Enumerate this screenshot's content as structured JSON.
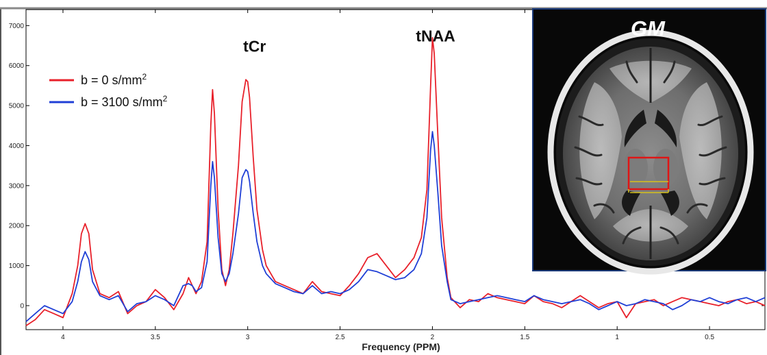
{
  "chart_data": {
    "type": "line",
    "title": "",
    "xlabel": "Frequency (PPM)",
    "ylabel": "",
    "xlim": [
      4.2,
      0.2
    ],
    "x_reversed": true,
    "ylim": [
      -600,
      7400
    ],
    "x_ticks": [
      4,
      3.5,
      3,
      2.5,
      2,
      1.5,
      1,
      0.5
    ],
    "x_tick_labels": [
      "4",
      "3.5",
      "3",
      "2.5",
      "2",
      "1.5",
      "1",
      "0.5"
    ],
    "y_ticks": [
      0,
      1000,
      2000,
      3000,
      4000,
      5000,
      6000,
      7000
    ],
    "y_tick_labels": [
      "0",
      "1000",
      "2000",
      "3000",
      "4000",
      "5000",
      "6000",
      "7000"
    ],
    "grid": false,
    "legend": {
      "placement": "upper-left",
      "entries": [
        {
          "prefix": "b = 0 s/mm",
          "sup": "2",
          "color": "#e8202a"
        },
        {
          "prefix": "b = 3100 s/mm",
          "sup": "2",
          "color": "#1f3fd6"
        }
      ]
    },
    "annotations": [
      {
        "text": "tCr",
        "x": 3.0,
        "y": 6350
      },
      {
        "text": "tNAA",
        "x": 2.02,
        "y": 6600
      }
    ],
    "series": [
      {
        "name": "b = 0 s/mm2",
        "color": "#e8202a",
        "x": [
          4.2,
          4.15,
          4.1,
          4.05,
          4.0,
          3.95,
          3.92,
          3.9,
          3.88,
          3.86,
          3.84,
          3.8,
          3.75,
          3.7,
          3.65,
          3.6,
          3.55,
          3.5,
          3.45,
          3.4,
          3.35,
          3.32,
          3.3,
          3.28,
          3.25,
          3.22,
          3.2,
          3.19,
          3.18,
          3.16,
          3.14,
          3.12,
          3.1,
          3.08,
          3.05,
          3.03,
          3.01,
          3.0,
          2.99,
          2.97,
          2.95,
          2.92,
          2.9,
          2.85,
          2.8,
          2.75,
          2.7,
          2.65,
          2.6,
          2.55,
          2.5,
          2.45,
          2.4,
          2.35,
          2.3,
          2.25,
          2.2,
          2.15,
          2.1,
          2.06,
          2.03,
          2.01,
          2.0,
          1.99,
          1.97,
          1.95,
          1.92,
          1.9,
          1.85,
          1.8,
          1.75,
          1.7,
          1.65,
          1.6,
          1.55,
          1.5,
          1.45,
          1.4,
          1.35,
          1.3,
          1.25,
          1.2,
          1.15,
          1.1,
          1.05,
          1.0,
          0.95,
          0.9,
          0.85,
          0.8,
          0.75,
          0.7,
          0.65,
          0.6,
          0.55,
          0.5,
          0.45,
          0.4,
          0.35,
          0.3,
          0.25,
          0.2
        ],
        "y": [
          -500,
          -350,
          -100,
          -200,
          -300,
          300,
          1000,
          1800,
          2050,
          1800,
          900,
          300,
          200,
          350,
          -200,
          0,
          100,
          400,
          200,
          -100,
          300,
          700,
          500,
          300,
          600,
          1600,
          4500,
          5400,
          4800,
          2400,
          900,
          500,
          900,
          1800,
          3500,
          5100,
          5650,
          5600,
          5200,
          3700,
          2400,
          1400,
          1000,
          600,
          500,
          400,
          300,
          600,
          350,
          300,
          250,
          500,
          800,
          1200,
          1300,
          1000,
          700,
          900,
          1200,
          1700,
          2900,
          5500,
          6700,
          6300,
          4200,
          2200,
          700,
          200,
          -50,
          150,
          100,
          300,
          200,
          150,
          100,
          50,
          250,
          100,
          50,
          -50,
          100,
          250,
          100,
          -50,
          50,
          100,
          -300,
          50,
          100,
          150,
          0,
          100,
          200,
          150,
          100,
          50,
          0,
          100,
          150,
          50,
          100,
          0
        ]
      },
      {
        "name": "b = 3100 s/mm2",
        "color": "#1f3fd6",
        "x": [
          4.2,
          4.15,
          4.1,
          4.05,
          4.0,
          3.95,
          3.92,
          3.9,
          3.88,
          3.86,
          3.84,
          3.8,
          3.75,
          3.7,
          3.65,
          3.6,
          3.55,
          3.5,
          3.45,
          3.4,
          3.35,
          3.32,
          3.3,
          3.28,
          3.25,
          3.22,
          3.2,
          3.19,
          3.18,
          3.16,
          3.14,
          3.12,
          3.1,
          3.08,
          3.05,
          3.03,
          3.01,
          3.0,
          2.99,
          2.97,
          2.95,
          2.92,
          2.9,
          2.85,
          2.8,
          2.75,
          2.7,
          2.65,
          2.6,
          2.55,
          2.5,
          2.45,
          2.4,
          2.35,
          2.3,
          2.25,
          2.2,
          2.15,
          2.1,
          2.06,
          2.03,
          2.01,
          2.0,
          1.99,
          1.97,
          1.95,
          1.92,
          1.9,
          1.85,
          1.8,
          1.75,
          1.7,
          1.65,
          1.6,
          1.55,
          1.5,
          1.45,
          1.4,
          1.35,
          1.3,
          1.25,
          1.2,
          1.15,
          1.1,
          1.05,
          1.0,
          0.95,
          0.9,
          0.85,
          0.8,
          0.75,
          0.7,
          0.65,
          0.6,
          0.55,
          0.5,
          0.45,
          0.4,
          0.35,
          0.3,
          0.25,
          0.2
        ],
        "y": [
          -400,
          -200,
          0,
          -100,
          -200,
          100,
          600,
          1100,
          1350,
          1150,
          600,
          250,
          150,
          250,
          -150,
          50,
          100,
          250,
          150,
          0,
          500,
          550,
          500,
          350,
          450,
          1100,
          3000,
          3600,
          3200,
          1700,
          800,
          600,
          800,
          1300,
          2300,
          3200,
          3400,
          3350,
          3100,
          2300,
          1600,
          1000,
          800,
          550,
          450,
          350,
          300,
          500,
          300,
          350,
          300,
          400,
          600,
          900,
          850,
          750,
          650,
          700,
          900,
          1300,
          2200,
          3900,
          4350,
          4000,
          2800,
          1500,
          600,
          150,
          50,
          100,
          150,
          200,
          250,
          200,
          150,
          100,
          250,
          150,
          100,
          50,
          100,
          150,
          50,
          -100,
          0,
          100,
          0,
          50,
          150,
          100,
          50,
          -100,
          0,
          150,
          100,
          200,
          100,
          50,
          150,
          200,
          100,
          200
        ]
      }
    ],
    "inset": {
      "title": "GM",
      "description_colors": {
        "roi_box": "#e01515",
        "roi_lines": "#d8c21a"
      }
    }
  }
}
